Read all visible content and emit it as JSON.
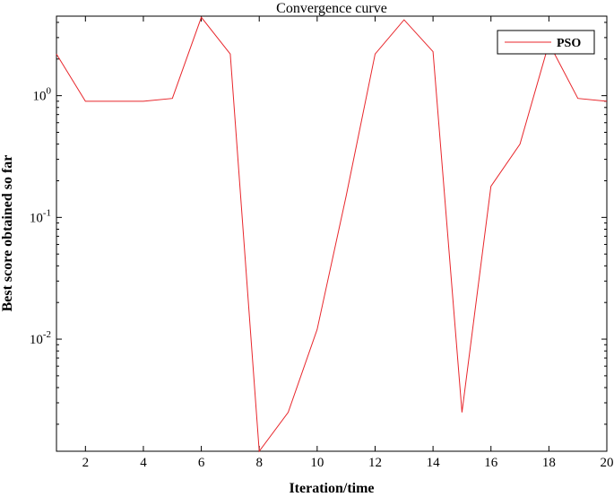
{
  "chart_data": {
    "type": "line",
    "title": "Convergence curve",
    "xlabel": "Iteration/time",
    "ylabel": "Best score obtained so far",
    "yscale": "log",
    "xlim": [
      1,
      20
    ],
    "ylim": [
      0.0012,
      4.5
    ],
    "x_ticks": [
      2,
      4,
      6,
      8,
      10,
      12,
      14,
      16,
      18,
      20
    ],
    "y_ticks": [
      {
        "value": 1,
        "base": "10",
        "exp": "0"
      },
      {
        "value": 0.1,
        "base": "10",
        "exp": "-1"
      },
      {
        "value": 0.01,
        "base": "10",
        "exp": "-2"
      }
    ],
    "grid": false,
    "legend_position": "top-right",
    "series": [
      {
        "name": "PSO",
        "color": "#e8262b",
        "x": [
          1,
          2,
          3,
          4,
          5,
          6,
          7,
          8,
          9,
          10,
          11,
          12,
          13,
          14,
          15,
          16,
          17,
          18,
          19,
          20
        ],
        "y": [
          2.2,
          0.9,
          0.9,
          0.9,
          0.95,
          4.4,
          2.2,
          0.0012,
          0.0025,
          0.012,
          0.15,
          2.2,
          4.2,
          2.3,
          0.0025,
          0.18,
          0.4,
          2.7,
          0.95,
          0.9
        ]
      }
    ]
  }
}
